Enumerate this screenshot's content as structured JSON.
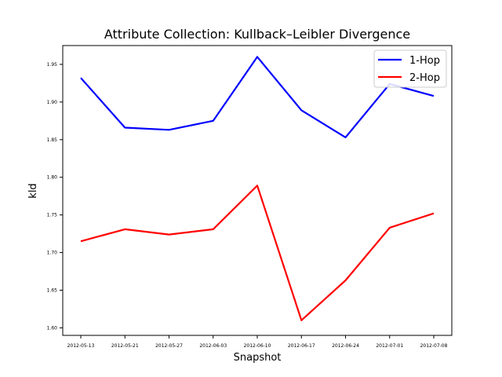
{
  "chart_data": {
    "type": "line",
    "title": "Attribute Collection:  Kullback–Leibler Divergence",
    "xlabel": "Snapshot",
    "ylabel": "kld",
    "categories": [
      "2012-05-13",
      "2012-05-21",
      "2012-05-27",
      "2012-06-03",
      "2012-06-10",
      "2012-06-17",
      "2012-06-24",
      "2012-07-01",
      "2012-07-08"
    ],
    "ylim": [
      1.59,
      1.975
    ],
    "yticks": [
      "1.60",
      "1.65",
      "1.70",
      "1.75",
      "1.80",
      "1.85",
      "1.90",
      "1.95"
    ],
    "grid": false,
    "legend_position": "top-right",
    "series": [
      {
        "name": "1-Hop",
        "color": "#0000ff",
        "values": [
          1.932,
          1.866,
          1.863,
          1.875,
          1.96,
          1.889,
          1.853,
          1.924,
          1.908
        ]
      },
      {
        "name": "2-Hop",
        "color": "#ff0000",
        "values": [
          1.715,
          1.731,
          1.724,
          1.731,
          1.789,
          1.61,
          1.663,
          1.733,
          1.752
        ]
      }
    ]
  }
}
